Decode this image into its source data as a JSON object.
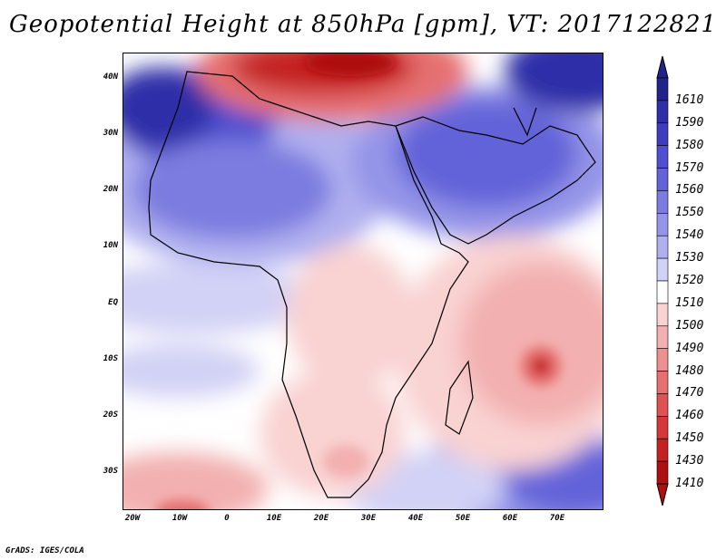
{
  "title": "Geopotential Height at 850hPa [gpm], VT: 2017122821",
  "footer": "GrADS: IGES/COLA",
  "y_ticks": [
    "40N",
    "30N",
    "20N",
    "10N",
    "EQ",
    "10S",
    "20S",
    "30S"
  ],
  "x_ticks": [
    "20W",
    "10W",
    "0",
    "10E",
    "20E",
    "30E",
    "40E",
    "50E",
    "60E",
    "70E"
  ],
  "colorbar": {
    "labels": [
      "1610",
      "1590",
      "1580",
      "1570",
      "1560",
      "1550",
      "1540",
      "1530",
      "1520",
      "1510",
      "1500",
      "1490",
      "1480",
      "1470",
      "1460",
      "1450",
      "1430",
      "1410"
    ],
    "colors": [
      "#23238c",
      "#2e2ea8",
      "#3d3dbf",
      "#4f4fcf",
      "#6363d9",
      "#7b7be0",
      "#9494e8",
      "#b0b0ef",
      "#d2d2f6",
      "#ffffff",
      "#f9d2d2",
      "#f3b0b0",
      "#ed9090",
      "#e67070",
      "#dd5252",
      "#d43838",
      "#c42222",
      "#ad1010"
    ]
  },
  "colors": {
    "blue_deep": "#2e2ea8",
    "blue": "#6363d9",
    "blue_light": "#b0b0ef",
    "blue_pale": "#d2d2f6",
    "red_pale": "#f9d2d2",
    "red_light": "#f3b0b0",
    "red": "#e67070",
    "red_deep": "#c42222",
    "white": "#ffffff",
    "coast": "#000000"
  }
}
